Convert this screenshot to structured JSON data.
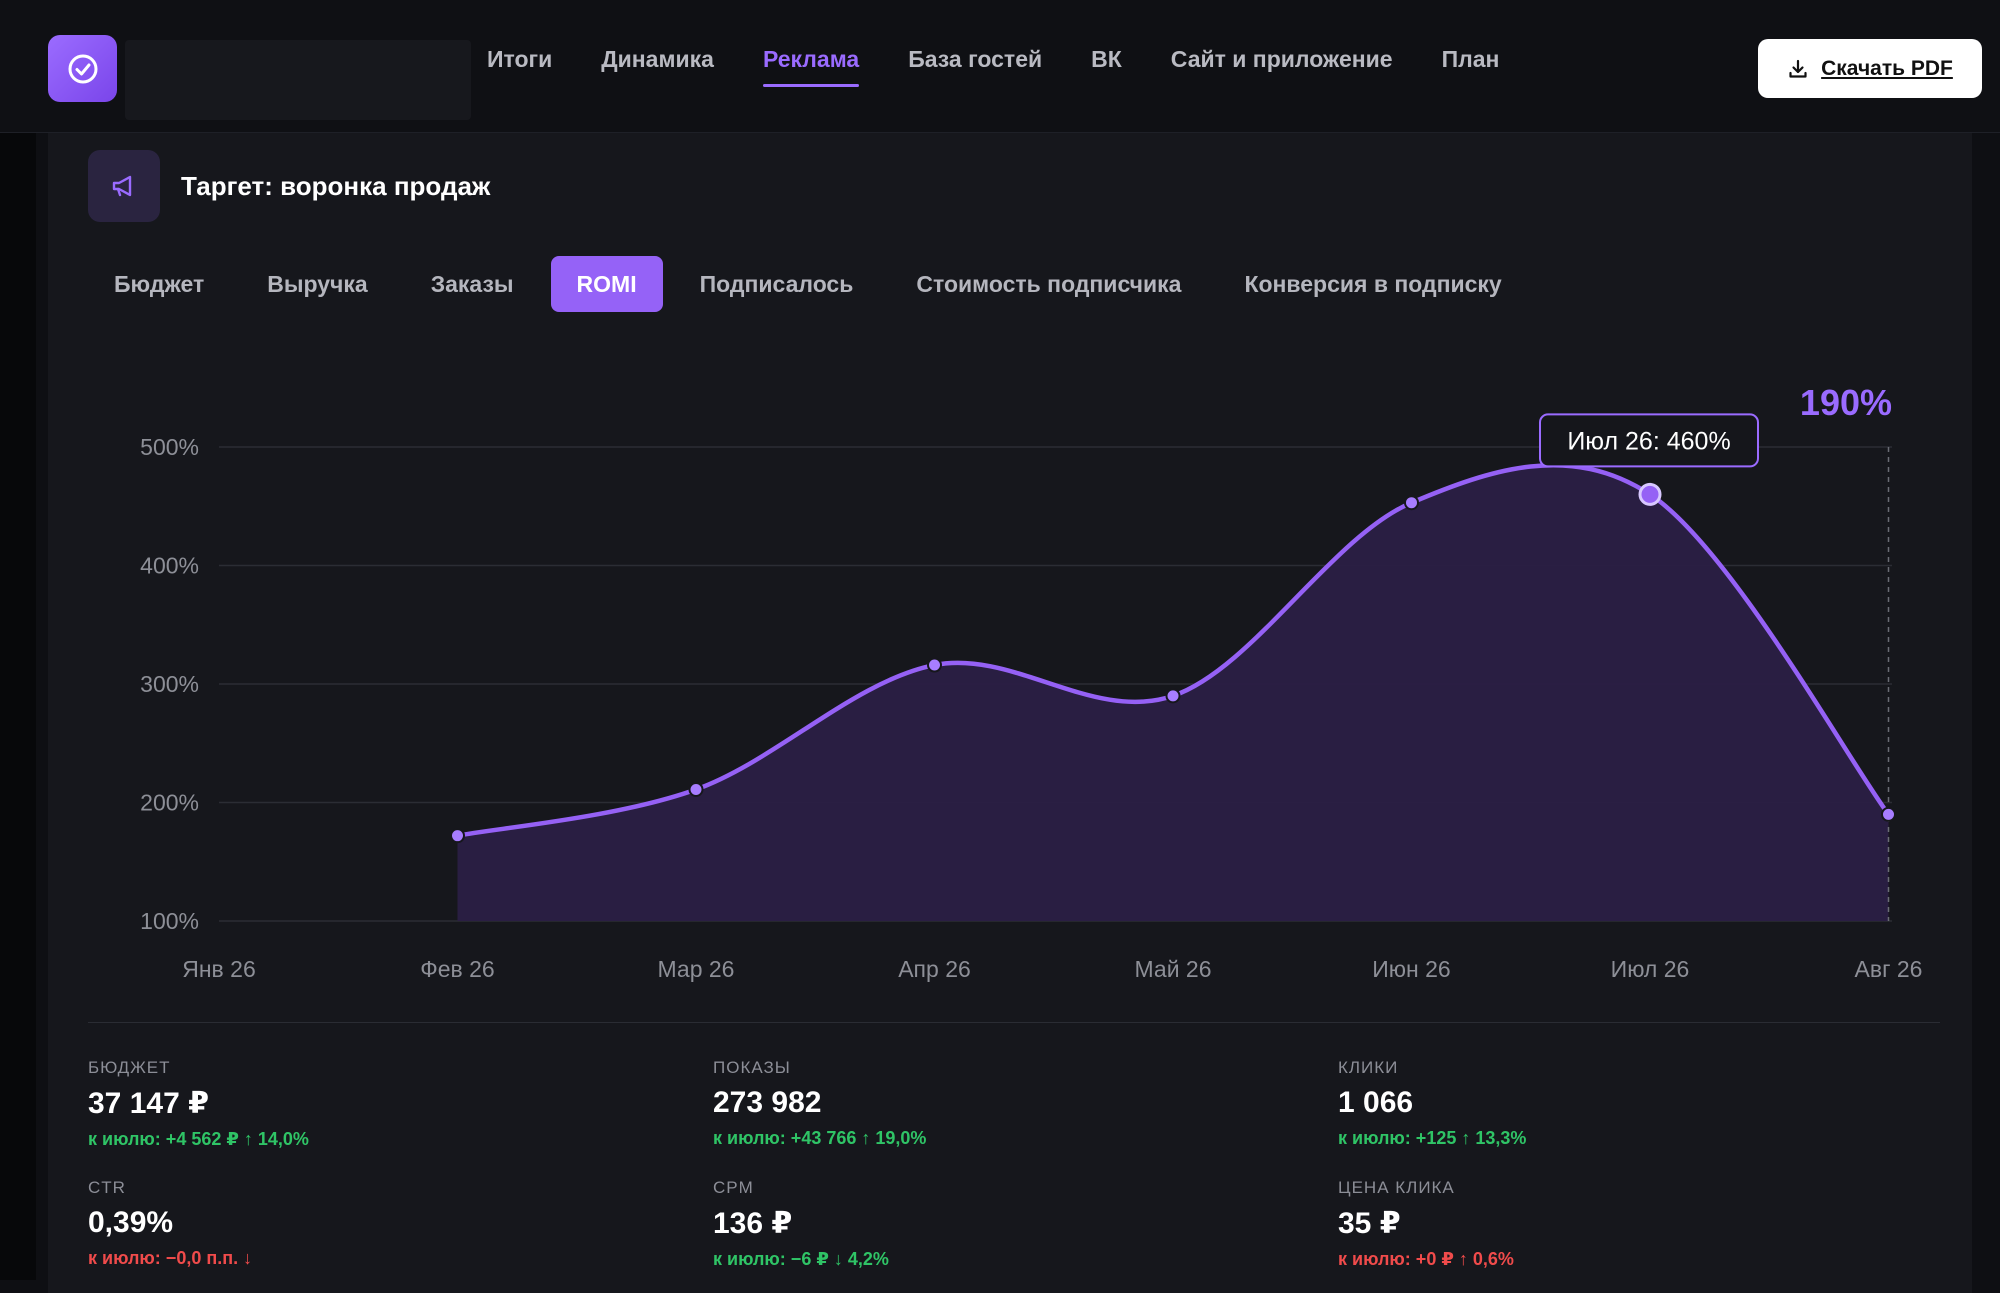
{
  "header": {
    "nav": [
      {
        "label": "Итоги",
        "active": false
      },
      {
        "label": "Динамика",
        "active": false
      },
      {
        "label": "Реклама",
        "active": true
      },
      {
        "label": "База гостей",
        "active": false
      },
      {
        "label": "ВК",
        "active": false
      },
      {
        "label": "Сайт и приложение",
        "active": false
      },
      {
        "label": "План",
        "active": false
      }
    ],
    "pdf_button_label": "Скачать PDF"
  },
  "section": {
    "title": "Таргет: воронка продаж",
    "tabs": [
      {
        "label": "Бюджет",
        "active": false
      },
      {
        "label": "Выручка",
        "active": false
      },
      {
        "label": "Заказы",
        "active": false
      },
      {
        "label": "ROMI",
        "active": true
      },
      {
        "label": "Подписалось",
        "active": false
      },
      {
        "label": "Стоимость подписчика",
        "active": false
      },
      {
        "label": "Конверсия в подписку",
        "active": false
      }
    ]
  },
  "chart_data": {
    "type": "area",
    "categories": [
      "Янв 26",
      "Фев 26",
      "Мар 26",
      "Апр 26",
      "Май 26",
      "Июн 26",
      "Июл 26",
      "Авг 26"
    ],
    "values": [
      null,
      172,
      211,
      316,
      290,
      453,
      460,
      190
    ],
    "y_ticks": [
      "100%",
      "200%",
      "300%",
      "400%",
      "500%"
    ],
    "ylim": [
      100,
      500
    ],
    "current_value_label": "190%",
    "tooltip": "Июл 26: 460%",
    "highlighted_index": 6,
    "grid": true,
    "colors": {
      "line": "#9561f5",
      "area": "#2a1f45"
    }
  },
  "metrics": [
    {
      "label": "Бюджет",
      "value": "37 147 ₽",
      "delta": "к июлю: +4 562 ₽ ↑ 14,0%",
      "trend": "up"
    },
    {
      "label": "Показы",
      "value": "273 982",
      "delta": "к июлю: +43 766 ↑ 19,0%",
      "trend": "up"
    },
    {
      "label": "Клики",
      "value": "1 066",
      "delta": "к июлю: +125 ↑ 13,3%",
      "trend": "up"
    },
    {
      "label": "CTR",
      "value": "0,39%",
      "delta": "к июлю: −0,0 п.п. ↓",
      "trend": "down"
    },
    {
      "label": "CPM",
      "value": "136 ₽",
      "delta": "к июлю: −6 ₽ ↓ 4,2%",
      "trend": "up"
    },
    {
      "label": "Цена клика",
      "value": "35 ₽",
      "delta": "к июлю: +0 ₽ ↑ 0,6%",
      "trend": "down"
    }
  ],
  "icons": {
    "logo": "check-circle-icon",
    "section": "megaphone-icon",
    "download": "download-icon"
  }
}
